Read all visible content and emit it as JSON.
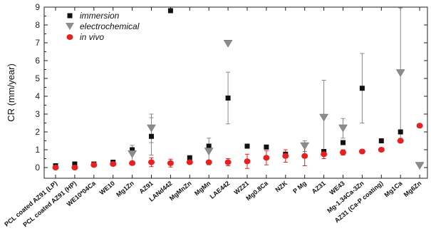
{
  "chart_data": {
    "type": "scatter",
    "ylabel": "CR (mm/year)",
    "xlabel": "",
    "title": "",
    "ylim": [
      -0.6,
      9
    ],
    "yticks": [
      0,
      1,
      2,
      3,
      4,
      5,
      6,
      7,
      8,
      9
    ],
    "grid": false,
    "legend_position": "top-left",
    "categories": [
      "PCL coated AZ91 (LP)",
      "PCL coated AZ91 (HP)",
      "WE10*04Ca",
      "WE10",
      "Mg1Zn",
      "AZ91",
      "LANd442",
      "MgMnZn",
      "MgMn",
      "LAE442",
      "WZ21",
      "Mg0.8Ca",
      "NZK",
      "P Mg",
      "AZ31",
      "WE43",
      "Mg-1.34Ca-3Zn",
      "AZ31 (Ca-P coating)",
      "Mg1Ca",
      "Mg6Zn"
    ],
    "series": [
      {
        "name": "immersion",
        "marker": "square",
        "color": "#111111",
        "values": [
          0.1,
          0.2,
          0.2,
          0.3,
          1.0,
          1.75,
          8.8,
          0.55,
          1.2,
          3.9,
          1.2,
          1.15,
          0.75,
          null,
          0.9,
          1.4,
          4.45,
          1.5,
          2.0,
          null
        ],
        "error": [
          null,
          null,
          null,
          null,
          null,
          1.05,
          null,
          null,
          null,
          1.45,
          null,
          null,
          null,
          null,
          null,
          null,
          1.95,
          null,
          null,
          null
        ]
      },
      {
        "name": "electrochemical",
        "marker": "triangle-down",
        "color": "#8c8c8c",
        "values": [
          null,
          null,
          null,
          null,
          0.75,
          2.2,
          null,
          null,
          0.9,
          6.95,
          null,
          null,
          null,
          1.2,
          2.8,
          2.2,
          null,
          null,
          5.3,
          0.1
        ],
        "error": [
          null,
          null,
          null,
          null,
          0.5,
          0.8,
          null,
          null,
          0.75,
          null,
          null,
          null,
          null,
          0.3,
          2.1,
          0.55,
          null,
          null,
          3.65,
          null
        ]
      },
      {
        "name": "in vivo",
        "marker": "circle",
        "color": "#e8201f",
        "values": [
          0.0,
          0.0,
          0.15,
          0.2,
          0.25,
          0.3,
          0.25,
          0.3,
          0.3,
          0.3,
          0.35,
          0.55,
          0.65,
          0.65,
          0.75,
          0.85,
          0.9,
          1.0,
          1.5,
          2.35
        ],
        "error": [
          null,
          null,
          null,
          null,
          null,
          0.25,
          0.22,
          null,
          null,
          0.2,
          0.4,
          0.4,
          0.35,
          0.55,
          0.25,
          0.15,
          null,
          null,
          null,
          null
        ]
      }
    ]
  }
}
